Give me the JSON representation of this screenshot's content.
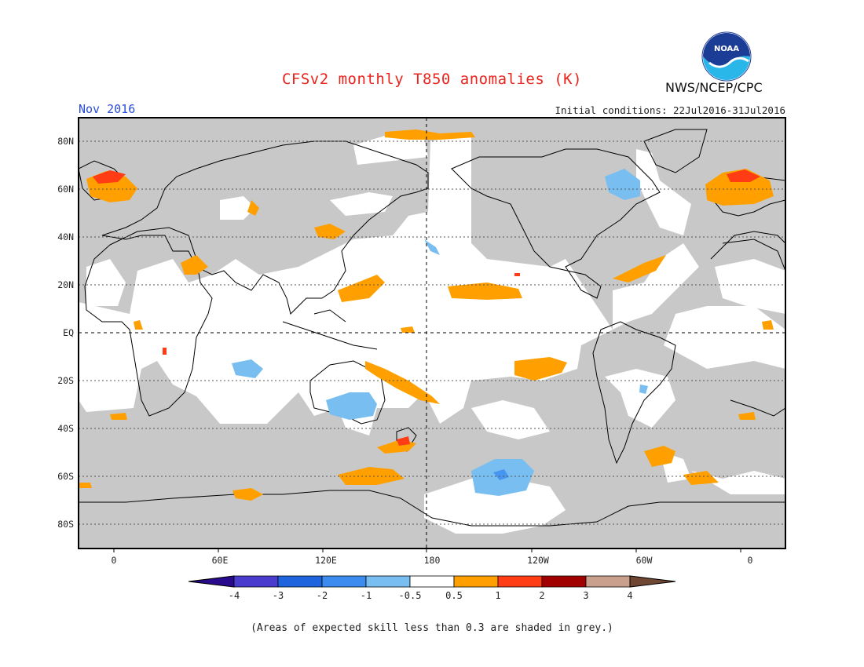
{
  "header": {
    "title": "CFSv2 monthly T850 anomalies (K)",
    "agency": "NWS/NCEP/CPC",
    "period": "Nov 2016",
    "initial_conditions": "Initial conditions: 22Jul2016-31Jul2016",
    "logo_text": "NOAA"
  },
  "map": {
    "lat_labels": [
      "80N",
      "60N",
      "40N",
      "20N",
      "EQ",
      "20S",
      "40S",
      "60S",
      "80S"
    ],
    "lat_values": [
      80,
      60,
      40,
      20,
      0,
      -20,
      -40,
      -60,
      -80
    ],
    "lon_labels": [
      "0",
      "60E",
      "120E",
      "180",
      "120W",
      "60W",
      "0"
    ],
    "lon_values": [
      0,
      60,
      120,
      180,
      240,
      300,
      360
    ],
    "lon_range": [
      -20,
      380
    ],
    "lat_range": [
      -90,
      90
    ],
    "colors": {
      "grey_skill_mask": "#c8c8c8",
      "ocean_background": "#ffffff",
      "positive_0_5_1": "#ffa000",
      "positive_1_2": "#ff3c14",
      "positive_2_3": "#b40000",
      "negative_0_5_1": "#78bef0",
      "negative_1_2": "#4696f0"
    }
  },
  "colorbar": {
    "levels": [
      "-4",
      "-3",
      "-2",
      "-1",
      "-0.5",
      "0.5",
      "1",
      "2",
      "3",
      "4"
    ],
    "colors": [
      "#2a0a8c",
      "#4a3ccc",
      "#1e64dc",
      "#3c8cf0",
      "#78bef0",
      "#ffffff",
      "#ffa000",
      "#ff3c14",
      "#a00000",
      "#c8a08c",
      "#6e4632"
    ]
  },
  "footnote": "(Areas of expected skill less than 0.3 are shaded in grey.)"
}
